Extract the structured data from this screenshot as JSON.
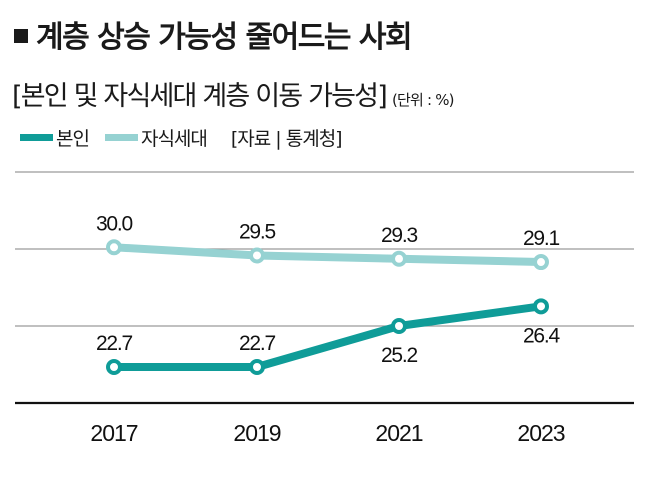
{
  "header": {
    "title": "계층 상승 가능성 줄어드는 사회",
    "title_bullet_icon": "black-square-icon",
    "subtitle": "[본인 및 자식세대 계층 이동 가능성]",
    "unit": "(단위 : %)"
  },
  "legend": {
    "items": [
      {
        "label": "본인",
        "color": "#0f9c98"
      },
      {
        "label": "자식세대",
        "color": "#96d2d2"
      }
    ],
    "source": "[자료 | 통계청]"
  },
  "chart_data": {
    "type": "line",
    "title": "계층 상승 가능성 줄어드는 사회",
    "subtitle": "[본인 및 자식세대 계층 이동 가능성]",
    "unit": "%",
    "xlabel": "",
    "ylabel": "",
    "x": [
      "2017",
      "2019",
      "2021",
      "2023"
    ],
    "series": [
      {
        "name": "본인",
        "color": "#0f9c98",
        "values": [
          22.7,
          22.7,
          25.2,
          26.4
        ],
        "labels": [
          "22.7",
          "22.7",
          "25.2",
          "26.4"
        ],
        "label_position": [
          "above",
          "above",
          "below",
          "below"
        ]
      },
      {
        "name": "자식세대",
        "color": "#96d2d2",
        "values": [
          30.0,
          29.5,
          29.3,
          29.1
        ],
        "labels": [
          "30.0",
          "29.5",
          "29.3",
          "29.1"
        ],
        "label_position": [
          "above",
          "above",
          "above",
          "above"
        ]
      }
    ],
    "grid": true,
    "legend_position": "top-left",
    "source": "통계청"
  }
}
